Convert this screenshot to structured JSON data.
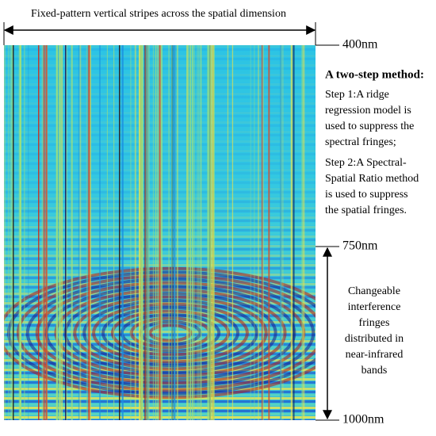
{
  "header": {
    "title": "Fixed-pattern vertical stripes across the spatial dimension"
  },
  "wavelengths": [
    "400nm",
    "750nm",
    "1000nm"
  ],
  "method": {
    "title": "A two-step method:",
    "steps": [
      [
        "Step 1:A ridge",
        "regression model is",
        "used to suppress the",
        "spectral fringes;"
      ],
      [
        "Step 2:A Spectral-",
        "Spatial Ratio method",
        "is used to suppress",
        "the spatial fringes."
      ]
    ]
  },
  "annotation": [
    "Changeable",
    "interference",
    "fringes",
    "distributed in",
    "near-infrared",
    "bands"
  ]
}
